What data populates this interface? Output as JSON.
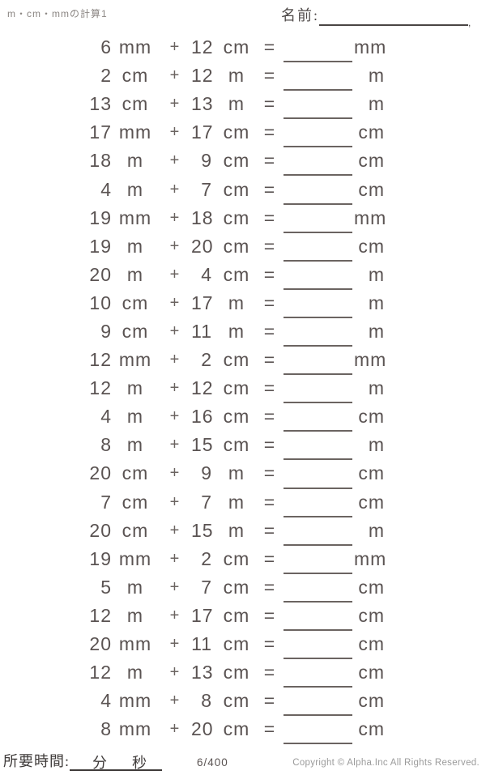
{
  "header": {
    "title": "m・cm・mmの計算1",
    "name_label": "名前:",
    "name_line_tick": ","
  },
  "symbols": {
    "plus": "+",
    "equals": "="
  },
  "problems": [
    {
      "n1": "6",
      "u1": "mm",
      "n2": "12",
      "u2": "cm",
      "u3": "mm"
    },
    {
      "n1": "2",
      "u1": "cm",
      "n2": "12",
      "u2": "m",
      "u3": "m"
    },
    {
      "n1": "13",
      "u1": "cm",
      "n2": "13",
      "u2": "m",
      "u3": "m"
    },
    {
      "n1": "17",
      "u1": "mm",
      "n2": "17",
      "u2": "cm",
      "u3": "cm"
    },
    {
      "n1": "18",
      "u1": "m",
      "n2": "9",
      "u2": "cm",
      "u3": "cm"
    },
    {
      "n1": "4",
      "u1": "m",
      "n2": "7",
      "u2": "cm",
      "u3": "cm"
    },
    {
      "n1": "19",
      "u1": "mm",
      "n2": "18",
      "u2": "cm",
      "u3": "mm"
    },
    {
      "n1": "19",
      "u1": "m",
      "n2": "20",
      "u2": "cm",
      "u3": "cm"
    },
    {
      "n1": "20",
      "u1": "m",
      "n2": "4",
      "u2": "cm",
      "u3": "m"
    },
    {
      "n1": "10",
      "u1": "cm",
      "n2": "17",
      "u2": "m",
      "u3": "m"
    },
    {
      "n1": "9",
      "u1": "cm",
      "n2": "11",
      "u2": "m",
      "u3": "m"
    },
    {
      "n1": "12",
      "u1": "mm",
      "n2": "2",
      "u2": "cm",
      "u3": "mm"
    },
    {
      "n1": "12",
      "u1": "m",
      "n2": "12",
      "u2": "cm",
      "u3": "m"
    },
    {
      "n1": "4",
      "u1": "m",
      "n2": "16",
      "u2": "cm",
      "u3": "cm"
    },
    {
      "n1": "8",
      "u1": "m",
      "n2": "15",
      "u2": "cm",
      "u3": "m"
    },
    {
      "n1": "20",
      "u1": "cm",
      "n2": "9",
      "u2": "m",
      "u3": "cm"
    },
    {
      "n1": "7",
      "u1": "cm",
      "n2": "7",
      "u2": "m",
      "u3": "cm"
    },
    {
      "n1": "20",
      "u1": "cm",
      "n2": "15",
      "u2": "m",
      "u3": "m"
    },
    {
      "n1": "19",
      "u1": "mm",
      "n2": "2",
      "u2": "cm",
      "u3": "mm"
    },
    {
      "n1": "5",
      "u1": "m",
      "n2": "7",
      "u2": "cm",
      "u3": "cm"
    },
    {
      "n1": "12",
      "u1": "m",
      "n2": "17",
      "u2": "cm",
      "u3": "cm"
    },
    {
      "n1": "20",
      "u1": "mm",
      "n2": "11",
      "u2": "cm",
      "u3": "cm"
    },
    {
      "n1": "12",
      "u1": "m",
      "n2": "13",
      "u2": "cm",
      "u3": "cm"
    },
    {
      "n1": "4",
      "u1": "mm",
      "n2": "8",
      "u2": "cm",
      "u3": "cm"
    },
    {
      "n1": "8",
      "u1": "mm",
      "n2": "20",
      "u2": "cm",
      "u3": "cm"
    }
  ],
  "footer": {
    "time_label": "所要時間:",
    "minutes_label": "分",
    "seconds_label": "秒",
    "page_number": "6/400",
    "copyright": "Copyright © Alpha.Inc All Rights Reserved."
  },
  "colors": {
    "text": "#5a5352",
    "muted_title": "#8b8683",
    "answer_line": "#6b6461",
    "footer_ink": "#3f3b3a",
    "copyright": "#9b9b9b"
  }
}
